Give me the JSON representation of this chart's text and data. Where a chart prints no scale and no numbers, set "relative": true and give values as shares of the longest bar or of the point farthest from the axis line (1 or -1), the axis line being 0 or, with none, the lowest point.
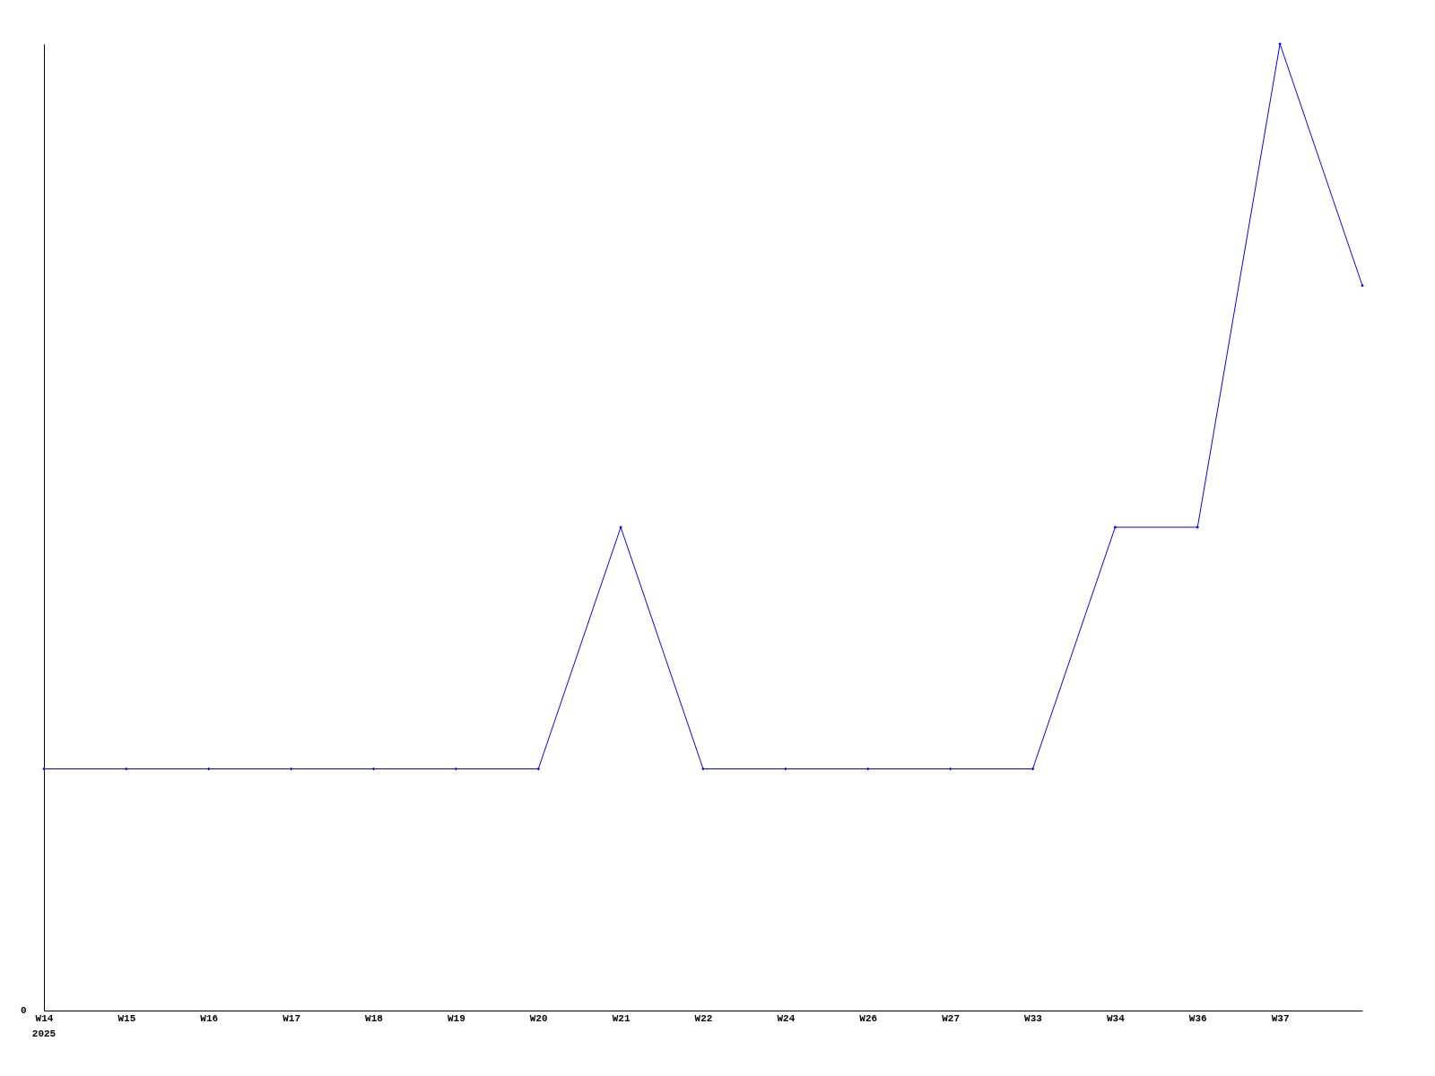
{
  "chart_data": {
    "type": "line",
    "relative": true,
    "categories": [
      "W14",
      "W15",
      "W16",
      "W17",
      "W18",
      "W19",
      "W20",
      "W21",
      "W22",
      "W24",
      "W26",
      "W27",
      "W33",
      "W34",
      "W36",
      "W37",
      null
    ],
    "series": [
      {
        "color": "#0000ff",
        "values": [
          0.25,
          0.25,
          0.25,
          0.25,
          0.25,
          0.25,
          0.25,
          0.5,
          0.25,
          0.25,
          0.25,
          0.25,
          0.25,
          0.5,
          0.5,
          1,
          0.75
        ]
      }
    ],
    "annotations": [
      "0",
      "2025"
    ],
    "marker": "diamond",
    "grid": false
  }
}
